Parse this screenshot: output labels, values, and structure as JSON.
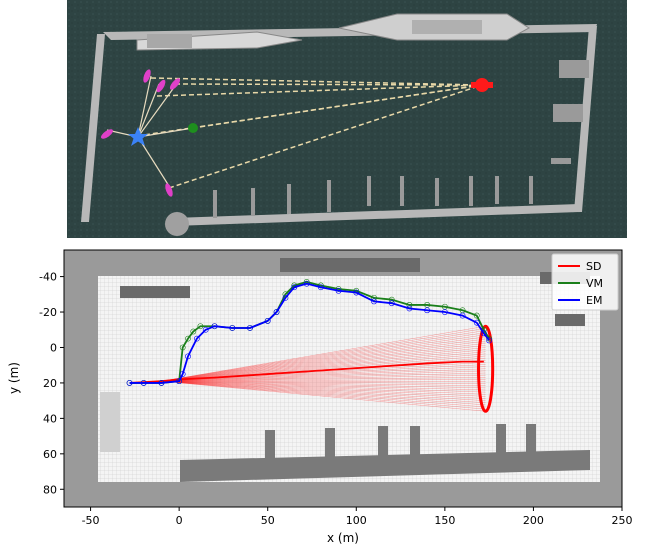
{
  "top_panel": {
    "colors": {
      "water": "#2e4443",
      "structure": "#c9c9c9",
      "ray": "#e8d8a8",
      "vehicle": "#3b82f6",
      "target": "#ff1a1a",
      "estimate": "#1e8f1e",
      "candidate": "#e040c8"
    },
    "icons": [
      "star-vehicle-icon",
      "target-marker-icon",
      "estimate-dot-icon",
      "candidate-arrow-icon"
    ]
  },
  "chart_data": {
    "type": "line",
    "xlabel": "x (m)",
    "ylabel": "y (m)",
    "xlim": [
      -65,
      250
    ],
    "ylim": [
      90,
      -55
    ],
    "xticks": [
      -50,
      0,
      50,
      100,
      150,
      200,
      250
    ],
    "yticks": [
      -40,
      -20,
      0,
      20,
      40,
      60,
      80
    ],
    "legend_position": "top-right",
    "grid": false,
    "series": [
      {
        "name": "SD",
        "color": "#ff0000",
        "x": [
          -28,
          -10,
          0,
          20,
          50,
          80,
          110,
          140,
          160,
          172
        ],
        "y": [
          20,
          19,
          18,
          17,
          15,
          13,
          11,
          9,
          8,
          8
        ]
      },
      {
        "name": "VM",
        "color": "#1a7f1a",
        "x": [
          -28,
          -20,
          -10,
          0,
          2,
          5,
          8,
          12,
          20,
          30,
          40,
          50,
          55,
          60,
          65,
          72,
          80,
          90,
          100,
          110,
          120,
          130,
          140,
          150,
          160,
          168,
          172,
          175
        ],
        "y": [
          20,
          20,
          20,
          19,
          0,
          -5,
          -9,
          -12,
          -12,
          -11,
          -11,
          -15,
          -20,
          -30,
          -35,
          -37,
          -35,
          -33,
          -32,
          -28,
          -27,
          -24,
          -24,
          -23,
          -21,
          -18,
          -10,
          -5
        ]
      },
      {
        "name": "EM",
        "color": "#0000ff",
        "x": [
          -28,
          -20,
          -10,
          0,
          2,
          5,
          10,
          15,
          20,
          30,
          40,
          50,
          55,
          60,
          65,
          72,
          80,
          90,
          100,
          110,
          120,
          130,
          140,
          150,
          160,
          168,
          172,
          175
        ],
        "y": [
          20,
          20,
          20,
          19,
          15,
          5,
          -5,
          -10,
          -12,
          -11,
          -11,
          -15,
          -20,
          -28,
          -34,
          -36,
          -34,
          -32,
          -31,
          -26,
          -25,
          -22,
          -21,
          -20,
          -18,
          -14,
          -8,
          -4
        ]
      }
    ],
    "uncertainty_ellipse": {
      "cx": 173,
      "cy": 12,
      "rx": 4,
      "ry": 24,
      "color": "#ff0000"
    }
  }
}
